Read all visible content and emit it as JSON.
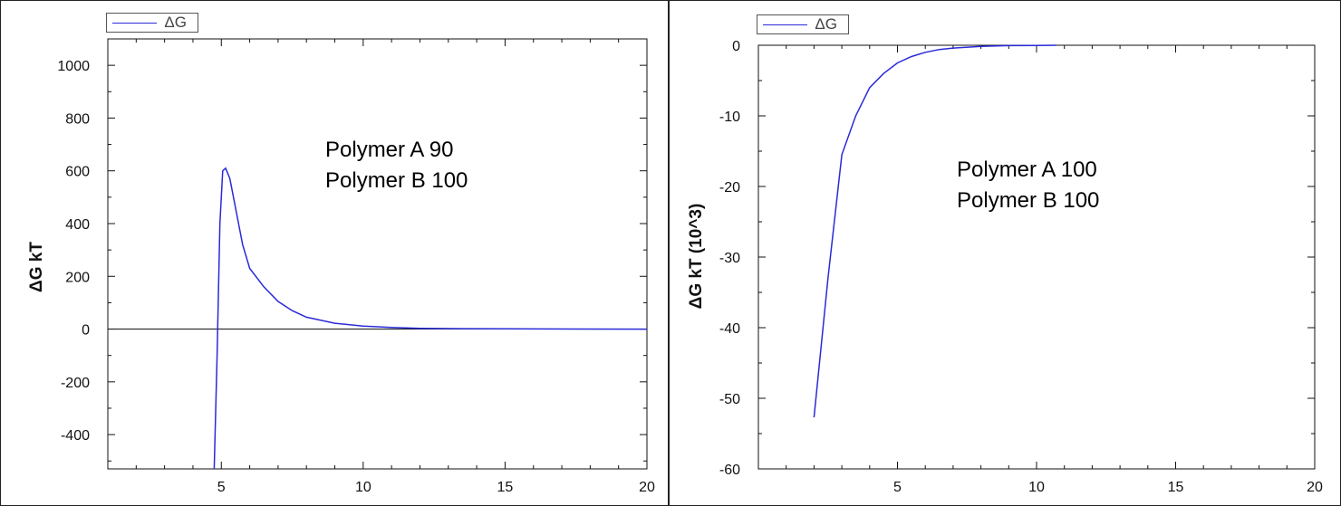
{
  "chart_data": [
    {
      "type": "line",
      "legend": "ΔG",
      "legend_position": "top-left",
      "ylabel": "ΔG kT",
      "xlabel": "",
      "xlim": [
        1,
        20
      ],
      "ylim": [
        -530,
        1100
      ],
      "x_ticks": [
        5,
        10,
        15,
        20
      ],
      "y_ticks": [
        -400,
        -200,
        0,
        200,
        400,
        600,
        800,
        1000
      ],
      "zero_line": true,
      "grid": false,
      "annotation": [
        "Polymer A 90",
        "Polymer B 100"
      ],
      "series": [
        {
          "name": "ΔG",
          "color": "#2a2ad8",
          "x": [
            4.75,
            4.85,
            4.95,
            5.05,
            5.15,
            5.3,
            5.5,
            5.75,
            6.0,
            6.5,
            7.0,
            7.5,
            8.0,
            9.0,
            10.0,
            11.0,
            12.0,
            13.0,
            15.0,
            20.0
          ],
          "y": [
            -530,
            -100,
            400,
            600,
            610,
            570,
            460,
            320,
            230,
            160,
            105,
            70,
            45,
            22,
            11,
            6,
            3,
            2,
            1,
            0
          ]
        }
      ]
    },
    {
      "type": "line",
      "legend": "ΔG",
      "legend_position": "top-left",
      "ylabel": "ΔG kT  (10^3)",
      "xlabel": "",
      "xlim": [
        0,
        20
      ],
      "ylim": [
        -60,
        0
      ],
      "x_ticks": [
        5,
        10,
        15,
        20
      ],
      "y_ticks": [
        -60,
        -50,
        -40,
        -30,
        -20,
        -10,
        0
      ],
      "grid": false,
      "annotation": [
        "Polymer A 100",
        "Polymer B 100"
      ],
      "series": [
        {
          "name": "ΔG",
          "color": "#2a2ad8",
          "x": [
            2.0,
            2.5,
            3.0,
            3.5,
            4.0,
            4.5,
            5.0,
            5.5,
            6.0,
            6.5,
            7.0,
            8.0,
            9.0,
            10.0,
            10.7
          ],
          "y": [
            -52.7,
            -33,
            -15.5,
            -10,
            -6,
            -4,
            -2.5,
            -1.6,
            -1.0,
            -0.6,
            -0.4,
            -0.15,
            -0.05,
            -0.02,
            0
          ]
        }
      ]
    }
  ]
}
